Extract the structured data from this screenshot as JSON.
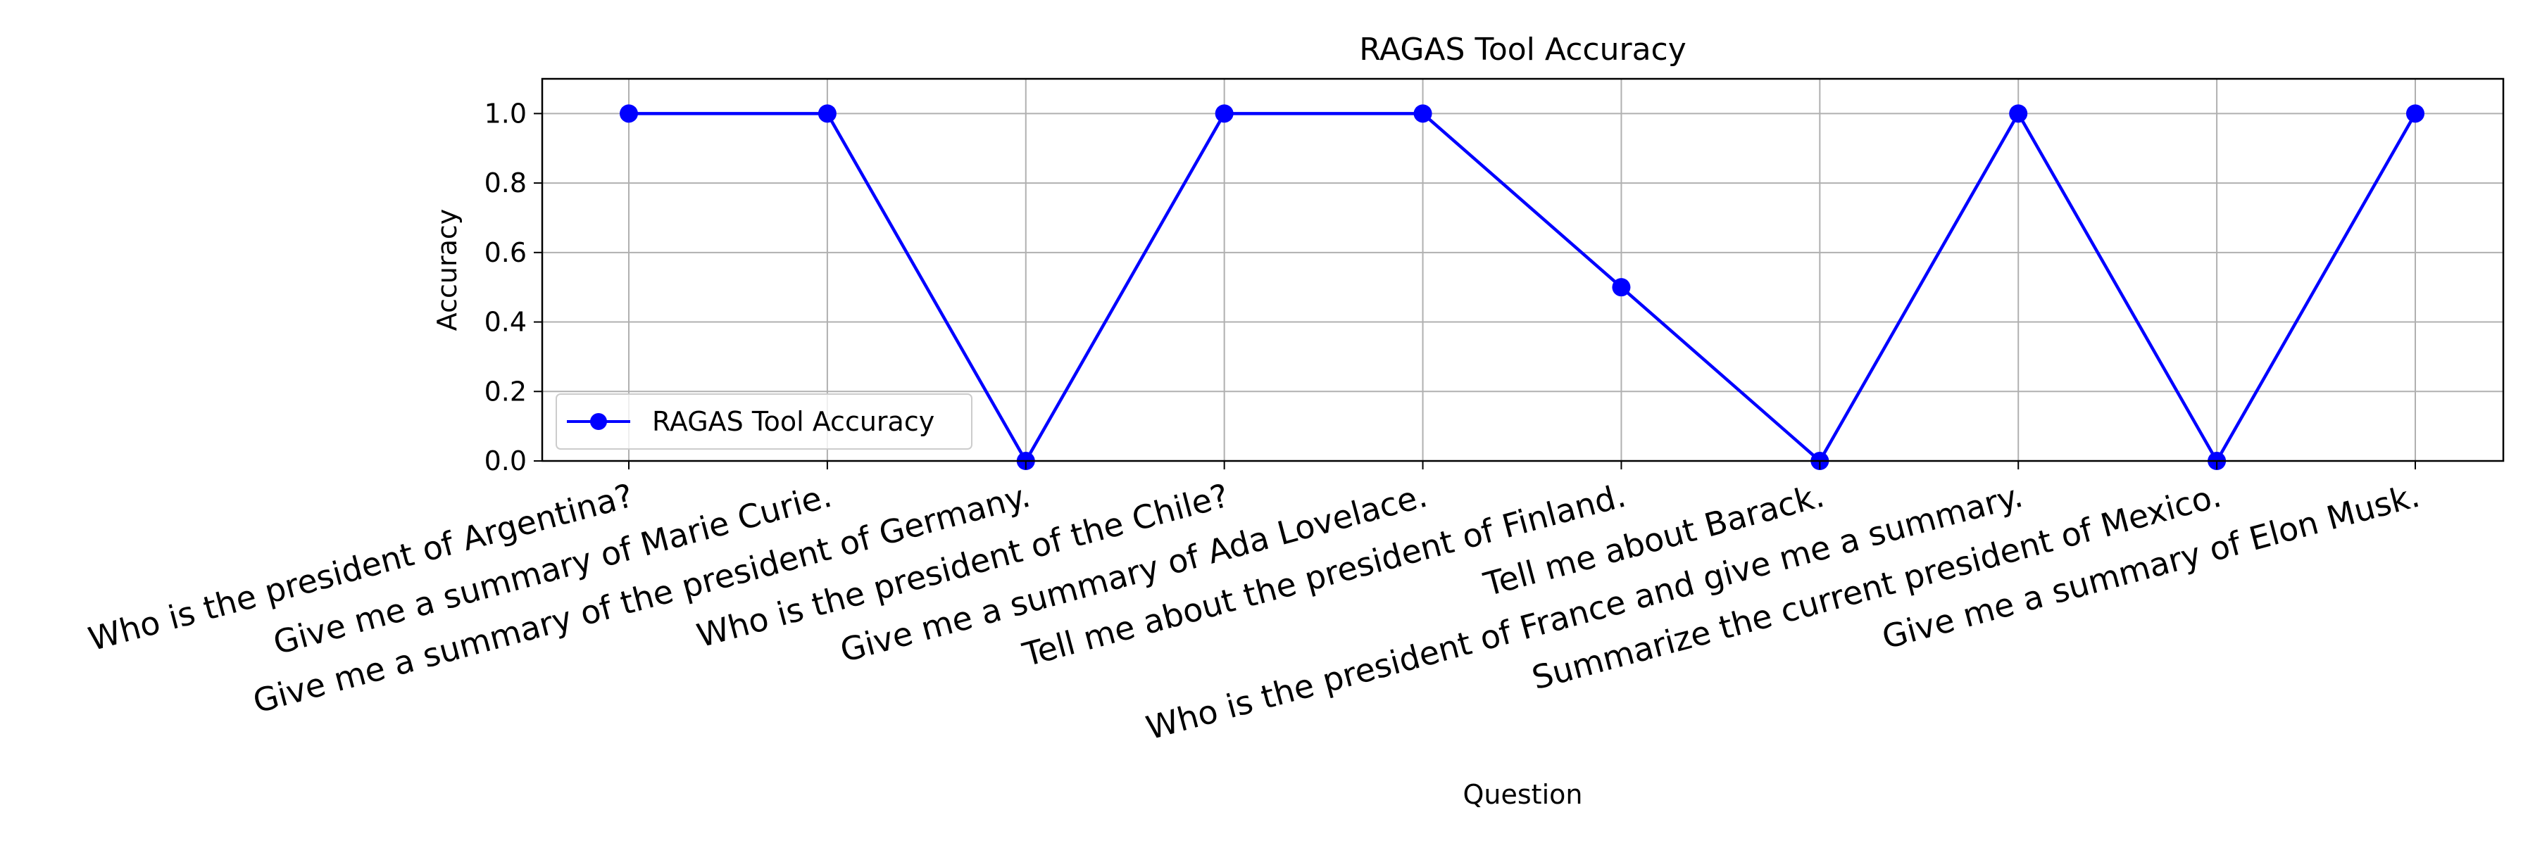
{
  "chart_data": {
    "type": "line",
    "title": "RAGAS Tool Accuracy",
    "xlabel": "Question",
    "ylabel": "Accuracy",
    "categories": [
      "Who is the president of Argentina?",
      "Give me a summary of Marie Curie.",
      "Give me a summary of the president of Germany.",
      "Who is the president of the Chile?",
      "Give me a summary of Ada Lovelace.",
      "Tell me about the president of Finland.",
      "Tell me about Barack.",
      "Who is the president of France and give me a summary.",
      "Summarize the current president of Mexico.",
      "Give me a summary of Elon Musk."
    ],
    "series": [
      {
        "name": "RAGAS Tool Accuracy",
        "values": [
          1.0,
          1.0,
          0.0,
          1.0,
          1.0,
          0.5,
          0.0,
          1.0,
          0.0,
          1.0
        ],
        "color": "#0000ff",
        "marker": "circle"
      }
    ],
    "ylim": [
      0.0,
      1.1
    ],
    "yticks": [
      0.0,
      0.2,
      0.4,
      0.6,
      0.8,
      1.0
    ],
    "ytick_labels": [
      "0.0",
      "0.2",
      "0.4",
      "0.6",
      "0.8",
      "1.0"
    ],
    "grid": true,
    "legend_position": "lower-left",
    "grid_color": "#b0b0b0"
  }
}
